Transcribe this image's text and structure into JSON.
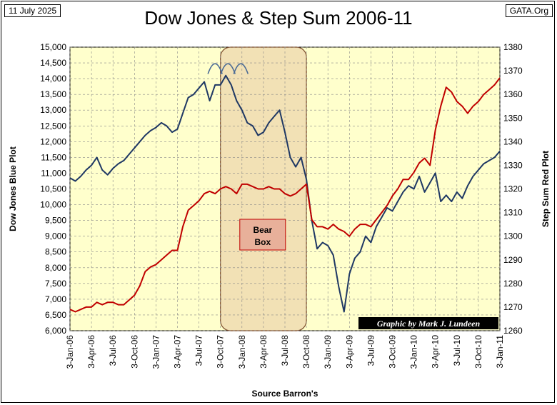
{
  "header": {
    "date": "11 July 2025",
    "site": "GATA.Org",
    "title": "Dow Jones & Step Sum 2006-11"
  },
  "chart_data": {
    "type": "line",
    "title": "Dow Jones & Step Sum 2006-11",
    "xlabel": "Source Barron's",
    "ylabel_left": "Dow Jones Blue Plot",
    "ylabel_right": "Step Sum Red Plot",
    "x_tick_labels": [
      "3-Jan-06",
      "3-Apr-06",
      "3-Jul-06",
      "3-Oct-06",
      "3-Jan-07",
      "3-Apr-07",
      "3-Jul-07",
      "3-Oct-07",
      "3-Jan-08",
      "3-Apr-08",
      "3-Jul-08",
      "3-Oct-08",
      "3-Jan-09",
      "3-Apr-09",
      "3-Jul-09",
      "3-Oct-09",
      "3-Jan-10",
      "3-Apr-10",
      "3-Jul-10",
      "3-Oct-10",
      "3-Jan-11"
    ],
    "ylim_left": [
      6000,
      15000
    ],
    "ylim_right": [
      1260,
      1380
    ],
    "y_ticks_left": [
      "6,000",
      "6,500",
      "7,000",
      "7,500",
      "8,000",
      "8,500",
      "9,000",
      "9,500",
      "10,000",
      "10,500",
      "11,000",
      "11,500",
      "12,000",
      "12,500",
      "13,000",
      "13,500",
      "14,000",
      "14,500",
      "15,000"
    ],
    "y_ticks_right": [
      "1260",
      "1270",
      "1280",
      "1290",
      "1300",
      "1310",
      "1320",
      "1330",
      "1340",
      "1350",
      "1360",
      "1370",
      "1380"
    ],
    "grid": true,
    "annotations": {
      "bear_box_label": "Bear Box",
      "credit": "Graphic by Mark J. Lundeen"
    },
    "series": [
      {
        "name": "Dow Jones",
        "axis": "left",
        "color": "#1f3864",
        "x": [
          0,
          0.25,
          0.5,
          0.75,
          1,
          1.25,
          1.5,
          1.75,
          2,
          2.25,
          2.5,
          2.75,
          3,
          3.25,
          3.5,
          3.75,
          4,
          4.25,
          4.5,
          4.75,
          5,
          5.25,
          5.5,
          5.75,
          6,
          6.25,
          6.5,
          6.75,
          7,
          7.25,
          7.5,
          7.75,
          8,
          8.25,
          8.5,
          8.75,
          9,
          9.25,
          9.5,
          9.75,
          10,
          10.25,
          10.5,
          10.75,
          11,
          11.25,
          11.5,
          11.75,
          12,
          12.25,
          12.5,
          12.75,
          13,
          13.25,
          13.5,
          13.75,
          14,
          14.25,
          14.5,
          14.75,
          15,
          15.25,
          15.5,
          15.75,
          16,
          16.25,
          16.5,
          16.75,
          17,
          17.25,
          17.5,
          17.75,
          18,
          18.25,
          18.5,
          18.75,
          19,
          19.25,
          19.5,
          19.75,
          20
        ],
        "values": [
          10850,
          10750,
          10900,
          11100,
          11250,
          11500,
          11100,
          10950,
          11150,
          11300,
          11400,
          11600,
          11800,
          12000,
          12200,
          12350,
          12450,
          12600,
          12500,
          12300,
          12400,
          12900,
          13400,
          13500,
          13700,
          13900,
          13300,
          13800,
          13800,
          14100,
          13800,
          13300,
          13000,
          12600,
          12500,
          12200,
          12300,
          12600,
          12800,
          13000,
          12300,
          11500,
          11200,
          11500,
          10800,
          9500,
          8600,
          8800,
          8700,
          8400,
          7400,
          6600,
          7800,
          8300,
          8500,
          9000,
          8800,
          9300,
          9600,
          9900,
          9800,
          10100,
          10400,
          10600,
          10500,
          10900,
          10400,
          10700,
          11000,
          10100,
          10300,
          10100,
          10400,
          10200,
          10600,
          10900,
          11100,
          11300,
          11400,
          11500,
          11700
        ]
      },
      {
        "name": "Step Sum",
        "axis": "right",
        "color": "#c00000",
        "x": [
          0,
          0.25,
          0.5,
          0.75,
          1,
          1.25,
          1.5,
          1.75,
          2,
          2.25,
          2.5,
          2.75,
          3,
          3.25,
          3.5,
          3.75,
          4,
          4.25,
          4.5,
          4.75,
          5,
          5.25,
          5.5,
          5.75,
          6,
          6.25,
          6.5,
          6.75,
          7,
          7.25,
          7.5,
          7.75,
          8,
          8.25,
          8.5,
          8.75,
          9,
          9.25,
          9.5,
          9.75,
          10,
          10.25,
          10.5,
          10.75,
          11,
          11.25,
          11.5,
          11.75,
          12,
          12.25,
          12.5,
          12.75,
          13,
          13.25,
          13.5,
          13.75,
          14,
          14.25,
          14.5,
          14.75,
          15,
          15.25,
          15.5,
          15.75,
          16,
          16.25,
          16.5,
          16.75,
          17,
          17.25,
          17.5,
          17.75,
          18,
          18.25,
          18.5,
          18.75,
          19,
          19.25,
          19.5,
          19.75,
          20
        ],
        "values": [
          1269,
          1268,
          1269,
          1270,
          1270,
          1272,
          1271,
          1272,
          1272,
          1271,
          1271,
          1273,
          1275,
          1279,
          1285,
          1287,
          1288,
          1290,
          1292,
          1294,
          1294,
          1304,
          1311,
          1313,
          1315,
          1318,
          1319,
          1318,
          1320,
          1321,
          1320,
          1318,
          1322,
          1322,
          1321,
          1320,
          1320,
          1321,
          1320,
          1320,
          1318,
          1317,
          1318,
          1320,
          1322,
          1307,
          1304,
          1304,
          1303,
          1305,
          1303,
          1302,
          1300,
          1303,
          1305,
          1305,
          1304,
          1307,
          1310,
          1313,
          1317,
          1320,
          1324,
          1324,
          1327,
          1331,
          1333,
          1330,
          1345,
          1355,
          1363,
          1361,
          1357,
          1355,
          1352,
          1355,
          1357,
          1360,
          1362,
          1364,
          1367
        ]
      }
    ]
  }
}
